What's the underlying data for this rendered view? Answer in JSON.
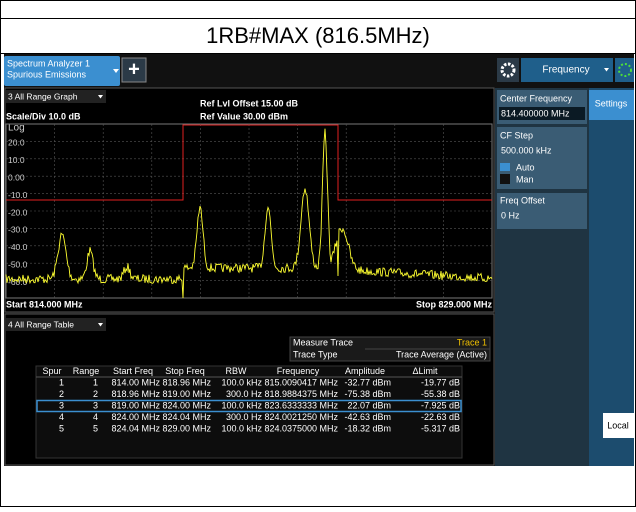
{
  "title": "1RB#MAX (816.5MHz)",
  "toolbar": {
    "tab_line1": "Spectrum Analyzer 1",
    "tab_line2": "Spurious Emissions",
    "plus": "+",
    "menu": "Frequency"
  },
  "graph": {
    "window": "3 All Range Graph",
    "scale": "Scale/Div 10.0 dB",
    "ref_offset": "Ref Lvl Offset 15.00 dB",
    "ref_value": "Ref Value 30.00 dBm",
    "scale_type": "Log",
    "y_labels": [
      "20.0",
      "10.0",
      "0.00",
      "-10.0",
      "-20.0",
      "-30.0",
      "-40.0",
      "-50.0",
      "-60.0"
    ],
    "start": "Start 814.000 MHz",
    "stop": "Stop 829.000 MHz"
  },
  "table": {
    "window": "4 All Range Table",
    "measure_trace_label": "Measure Trace",
    "measure_trace": "Trace 1",
    "trace_type_label": "Trace Type",
    "trace_type": "Trace Average (Active)",
    "columns": [
      "Spur",
      "Range",
      "Start Freq",
      "Stop Freq",
      "RBW",
      "Frequency",
      "Amplitude",
      "ΔLimit"
    ],
    "rows": [
      [
        "1",
        "1",
        "814.00 MHz",
        "818.96 MHz",
        "100.0 kHz",
        "815.0090417 MHz",
        "-32.77 dBm",
        "-19.77 dB"
      ],
      [
        "2",
        "2",
        "818.96 MHz",
        "819.00 MHz",
        "300.0 Hz",
        "818.9884375 MHz",
        "-75.38 dBm",
        "-55.38 dB"
      ],
      [
        "3",
        "3",
        "819.00 MHz",
        "824.00 MHz",
        "100.0 kHz",
        "823.6333333 MHz",
        "22.07 dBm",
        "-7.925 dB"
      ],
      [
        "4",
        "4",
        "824.00 MHz",
        "824.04 MHz",
        "300.0 Hz",
        "824.0021250 MHz",
        "-42.63 dBm",
        "-22.63 dB"
      ],
      [
        "5",
        "5",
        "824.04 MHz",
        "829.00 MHz",
        "100.0 kHz",
        "824.0375000 MHz",
        "-18.32 dBm",
        "-5.317 dB"
      ]
    ]
  },
  "side_panel": {
    "center_label": "Center Frequency",
    "center_value": "814.400000 MHz",
    "step_label": "CF Step",
    "step_value": "500.000 kHz",
    "auto": "Auto",
    "man": "Man",
    "offset_label": "Freq Offset",
    "offset_value": "0 Hz"
  },
  "settings_tab": "Settings",
  "local": "Local"
}
